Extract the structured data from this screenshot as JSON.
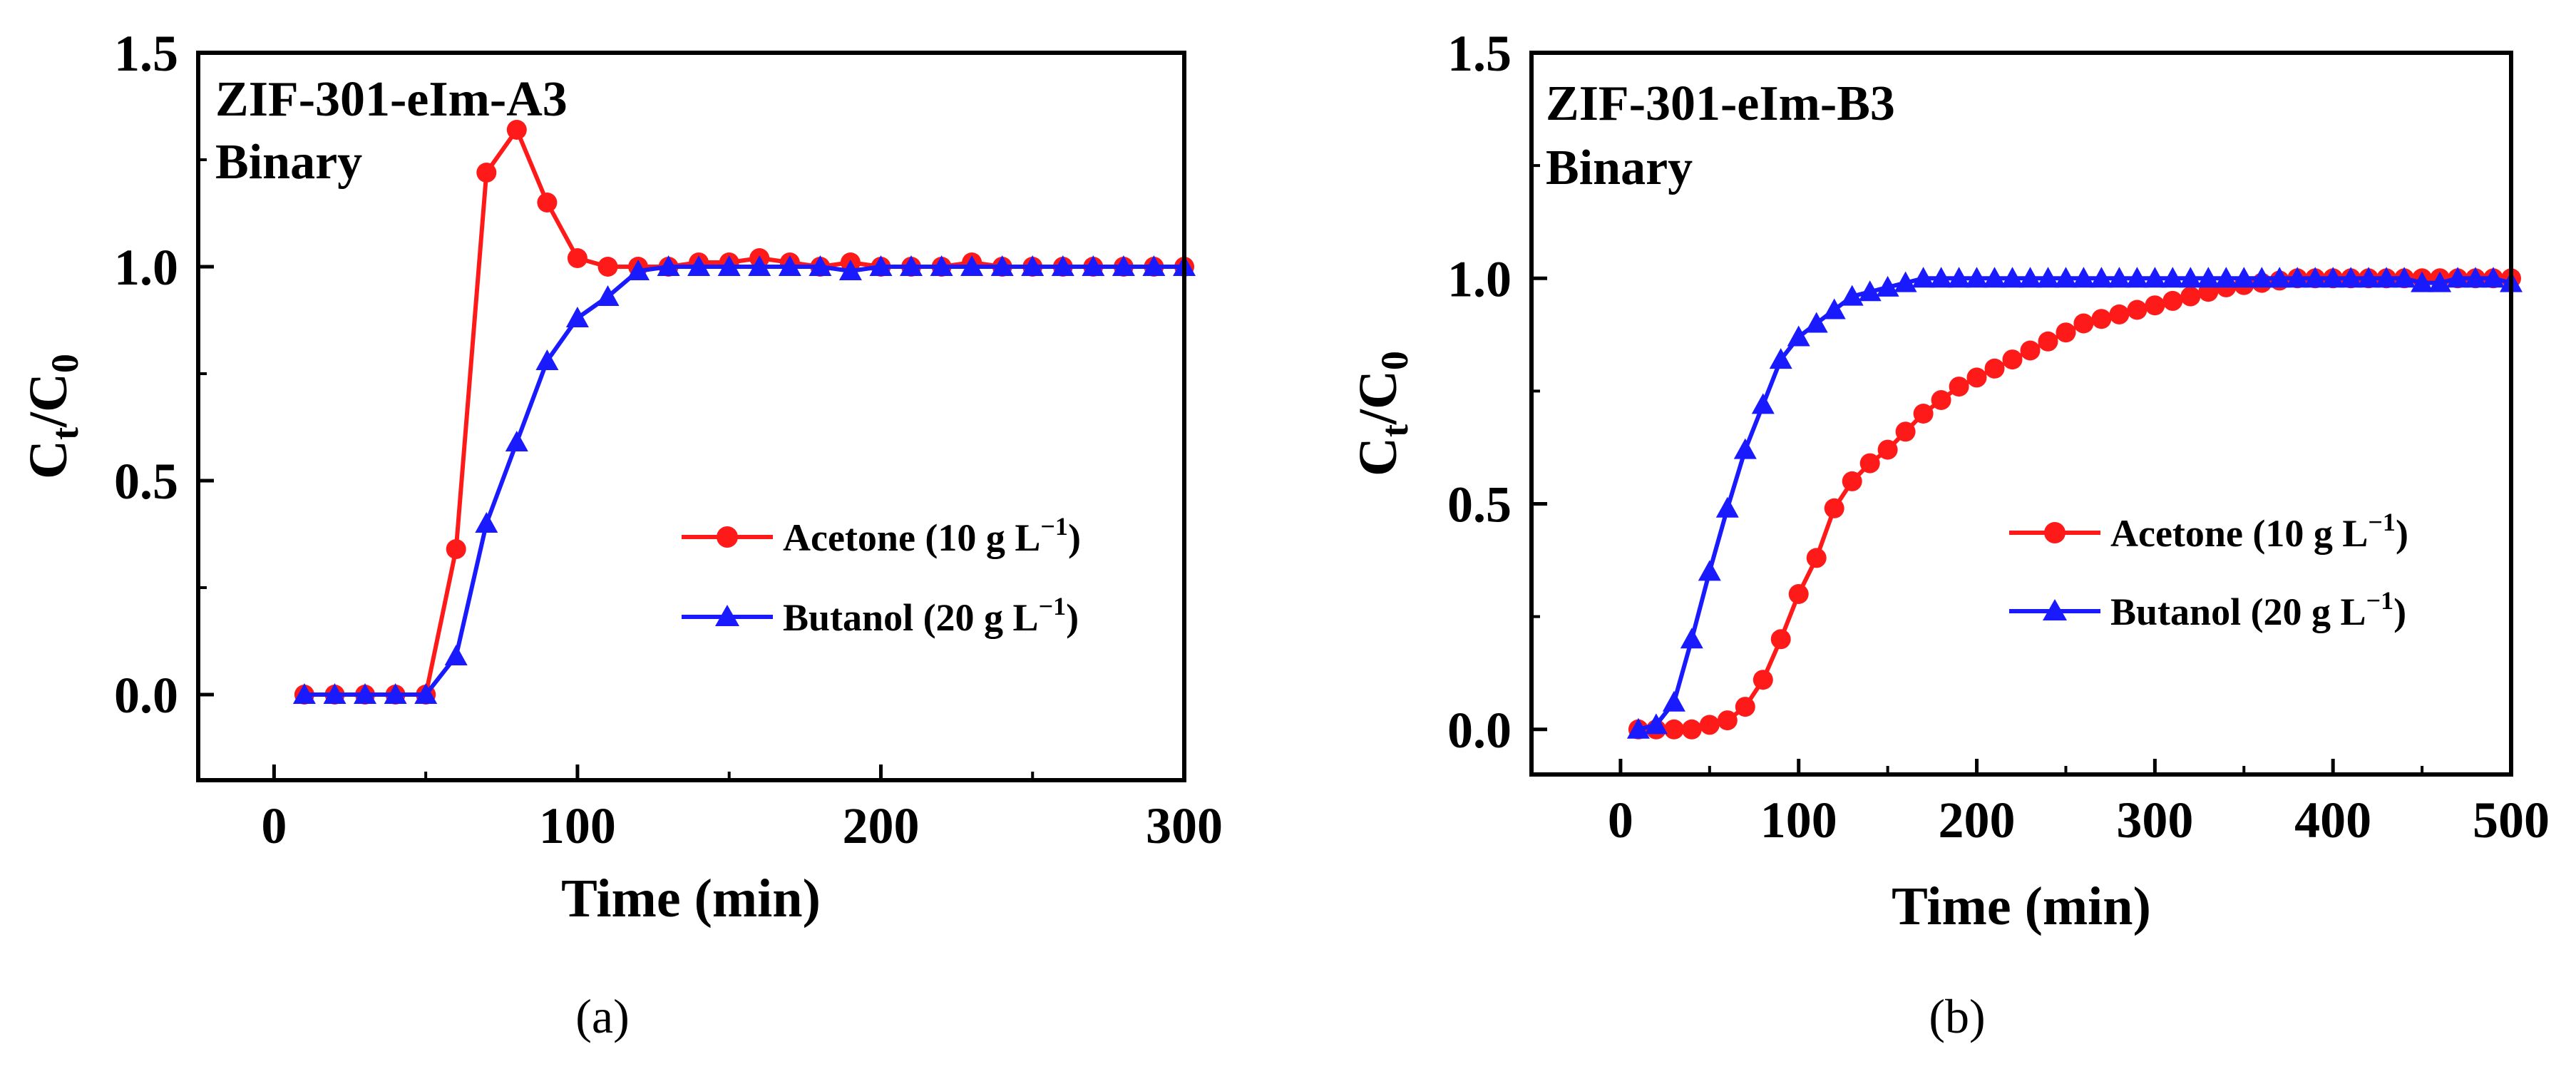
{
  "figure": {
    "captions": [
      "(a)",
      "(b)"
    ]
  },
  "chart_data": [
    {
      "type": "line",
      "panel": "a",
      "title_lines": [
        "ZIF-301-eIm-A3",
        "Binary"
      ],
      "xlabel": "Time (min)",
      "ylabel": {
        "main": "C",
        "sub1": "t",
        "slash": "/C",
        "sub2": "0"
      },
      "xlim": [
        -25,
        300
      ],
      "ylim": [
        -0.2,
        1.5
      ],
      "xticks": [
        0,
        100,
        200,
        300
      ],
      "yticks": [
        0.0,
        0.5,
        1.0,
        1.5
      ],
      "xtick_labels": [
        "0",
        "100",
        "200",
        "300"
      ],
      "ytick_labels": [
        "0.0",
        "0.5",
        "1.0",
        "1.5"
      ],
      "legend_position": "center-right",
      "series": [
        {
          "name": "Acetone",
          "label_main": "Acetone (10 g L",
          "label_sup": "−1",
          "label_end": ")",
          "color": "#ff1a1a",
          "marker": "circle",
          "x": [
            10,
            20,
            30,
            40,
            50,
            60,
            70,
            80,
            90,
            100,
            110,
            120,
            130,
            140,
            150,
            160,
            170,
            180,
            190,
            200,
            210,
            220,
            230,
            240,
            250,
            260,
            270,
            280,
            290,
            300
          ],
          "y": [
            0.0,
            0.0,
            0.0,
            0.0,
            0.0,
            0.34,
            1.22,
            1.32,
            1.15,
            1.02,
            1.0,
            1.0,
            1.0,
            1.01,
            1.01,
            1.02,
            1.01,
            1.0,
            1.01,
            1.0,
            1.0,
            1.0,
            1.01,
            1.0,
            1.0,
            1.0,
            1.0,
            1.0,
            1.0,
            1.0
          ]
        },
        {
          "name": "Butanol",
          "label_main": "Butanol (20 g L",
          "label_sup": "−1",
          "label_end": ")",
          "color": "#1a1aff",
          "marker": "triangle",
          "x": [
            10,
            20,
            30,
            40,
            50,
            60,
            70,
            80,
            90,
            100,
            110,
            120,
            130,
            140,
            150,
            160,
            170,
            180,
            190,
            200,
            210,
            220,
            230,
            240,
            250,
            260,
            270,
            280,
            290,
            300
          ],
          "y": [
            0.0,
            0.0,
            0.0,
            0.0,
            0.0,
            0.09,
            0.4,
            0.59,
            0.78,
            0.88,
            0.93,
            0.99,
            1.0,
            1.0,
            1.0,
            1.0,
            1.0,
            1.0,
            0.99,
            1.0,
            1.0,
            1.0,
            1.0,
            1.0,
            1.0,
            1.0,
            1.0,
            1.0,
            1.0,
            1.0
          ]
        }
      ]
    },
    {
      "type": "line",
      "panel": "b",
      "title_lines": [
        "ZIF-301-eIm-B3",
        "Binary"
      ],
      "xlabel": "Time (min)",
      "ylabel": {
        "main": "C",
        "sub1": "t",
        "slash": "/C",
        "sub2": "0"
      },
      "xlim": [
        -50,
        500
      ],
      "ylim": [
        -0.1,
        1.5
      ],
      "xticks": [
        0,
        100,
        200,
        300,
        400,
        500
      ],
      "yticks": [
        0.0,
        0.5,
        1.0,
        1.5
      ],
      "xtick_labels": [
        "0",
        "100",
        "200",
        "300",
        "400",
        "500"
      ],
      "ytick_labels": [
        "0.0",
        "0.5",
        "1.0",
        "1.5"
      ],
      "legend_position": "center-right",
      "series": [
        {
          "name": "Acetone",
          "label_main": "Acetone (10 g L",
          "label_sup": "−1",
          "label_end": ")",
          "color": "#ff1a1a",
          "marker": "circle",
          "x": [
            10,
            20,
            30,
            40,
            50,
            60,
            70,
            80,
            90,
            100,
            110,
            120,
            130,
            140,
            150,
            160,
            170,
            180,
            190,
            200,
            210,
            220,
            230,
            240,
            250,
            260,
            270,
            280,
            290,
            300,
            310,
            320,
            330,
            340,
            350,
            360,
            370,
            380,
            390,
            400,
            410,
            420,
            430,
            440,
            450,
            460,
            470,
            480,
            490,
            500
          ],
          "y": [
            0.0,
            0.0,
            0.0,
            0.0,
            0.01,
            0.02,
            0.05,
            0.11,
            0.2,
            0.3,
            0.38,
            0.49,
            0.55,
            0.59,
            0.62,
            0.66,
            0.7,
            0.73,
            0.76,
            0.78,
            0.8,
            0.82,
            0.84,
            0.86,
            0.88,
            0.9,
            0.91,
            0.92,
            0.93,
            0.94,
            0.95,
            0.96,
            0.97,
            0.98,
            0.985,
            0.99,
            0.995,
            1.0,
            1.0,
            1.0,
            1.0,
            1.0,
            1.0,
            1.0,
            1.0,
            1.0,
            1.0,
            1.0,
            1.0,
            1.0
          ]
        },
        {
          "name": "Butanol",
          "label_main": "Butanol (20 g L",
          "label_sup": "−1",
          "label_end": ")",
          "color": "#1a1aff",
          "marker": "triangle",
          "x": [
            10,
            20,
            30,
            40,
            50,
            60,
            70,
            80,
            90,
            100,
            110,
            120,
            130,
            140,
            150,
            160,
            170,
            180,
            190,
            200,
            210,
            220,
            230,
            240,
            250,
            260,
            270,
            280,
            290,
            300,
            310,
            320,
            330,
            340,
            350,
            360,
            370,
            380,
            390,
            400,
            410,
            420,
            430,
            440,
            450,
            460,
            470,
            480,
            490,
            500
          ],
          "y": [
            0.0,
            0.01,
            0.06,
            0.2,
            0.35,
            0.49,
            0.62,
            0.72,
            0.82,
            0.87,
            0.9,
            0.93,
            0.96,
            0.97,
            0.98,
            0.99,
            1.0,
            1.0,
            1.0,
            1.0,
            1.0,
            1.0,
            1.0,
            1.0,
            1.0,
            1.0,
            1.0,
            1.0,
            1.0,
            1.0,
            1.0,
            1.0,
            1.0,
            1.0,
            1.0,
            1.0,
            1.0,
            1.0,
            1.0,
            1.0,
            1.0,
            1.0,
            1.0,
            1.0,
            0.99,
            0.99,
            1.0,
            1.0,
            1.0,
            0.99
          ]
        }
      ]
    }
  ]
}
